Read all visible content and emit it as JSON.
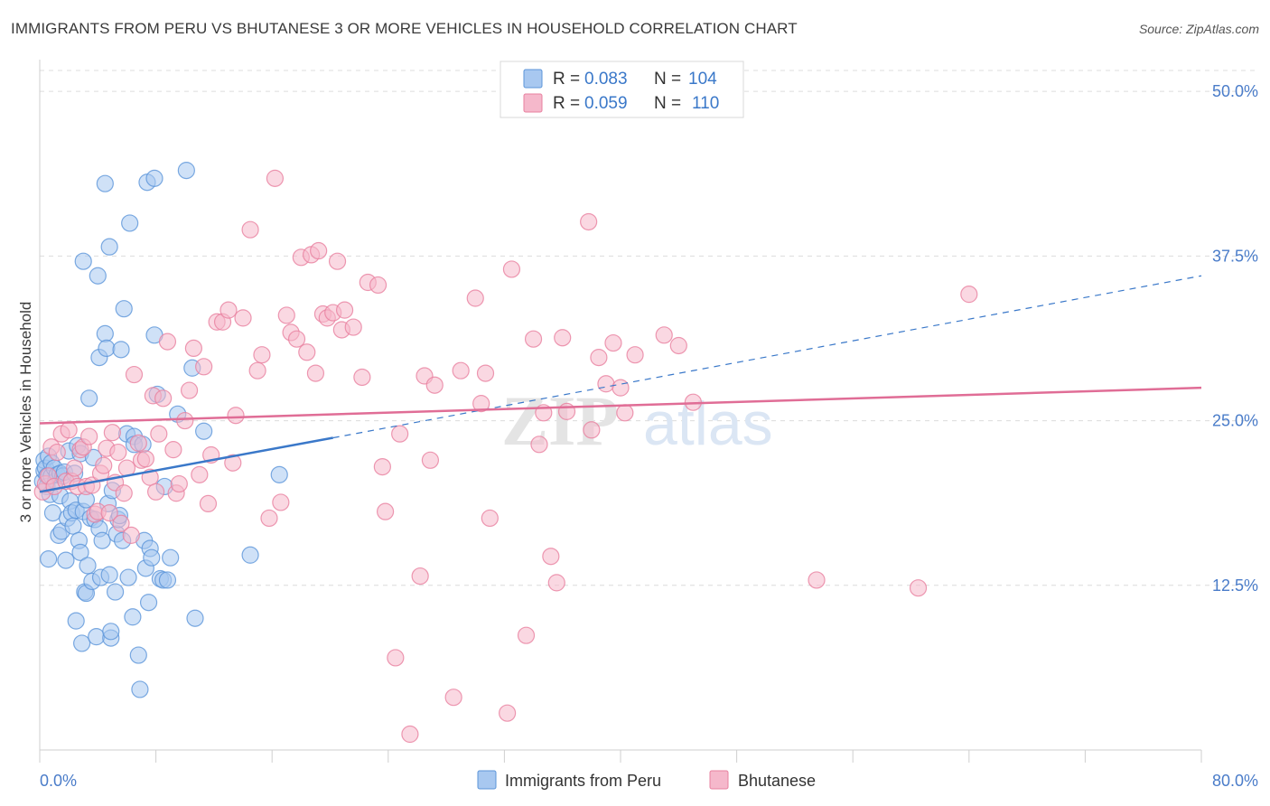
{
  "header": {
    "title": "IMMIGRANTS FROM PERU VS BHUTANESE 3 OR MORE VEHICLES IN HOUSEHOLD CORRELATION CHART",
    "source": "Source: ZipAtlas.com"
  },
  "watermark": {
    "zip": "ZIP",
    "atlas": "atlas"
  },
  "legend_top": {
    "rows": [
      {
        "r_label": "R =",
        "r_value": "0.083",
        "n_label": "N =",
        "n_value": "104"
      },
      {
        "r_label": "R =",
        "r_value": "0.059",
        "n_label": "N =",
        "n_value": "110"
      }
    ]
  },
  "colors": {
    "blue_fill": "#a8c8f0",
    "blue_stroke": "#5b95d9",
    "blue_line": "#3a78c9",
    "pink_fill": "#f5b8cb",
    "pink_stroke": "#e8809f",
    "pink_line": "#e06d96",
    "tick_label": "#4a7cc9",
    "grid": "#dcdcdc"
  },
  "chart_data": {
    "type": "scatter",
    "title": "IMMIGRANTS FROM PERU VS BHUTANESE 3 OR MORE VEHICLES IN HOUSEHOLD CORRELATION CHART",
    "xlabel": "",
    "ylabel": "3 or more Vehicles in Household",
    "xlim": [
      0,
      80
    ],
    "ylim": [
      0,
      52
    ],
    "x_tick_labels": [
      "0.0%",
      "80.0%"
    ],
    "y_ticks": [
      12.5,
      25.0,
      37.5,
      50.0
    ],
    "y_tick_labels": [
      "12.5%",
      "25.0%",
      "37.5%",
      "50.0%"
    ],
    "grid": true,
    "legend_position": "bottom",
    "series": [
      {
        "name": "Immigrants from Peru",
        "r": 0.083,
        "n": 104,
        "trend": {
          "x0": 0,
          "y0": 19.6,
          "x1": 20.2,
          "y1": 23.7,
          "dash_to_x": 80,
          "dash_to_y": 36.0
        },
        "points": [
          [
            0.2,
            20.4
          ],
          [
            0.3,
            21.2
          ],
          [
            0.3,
            22.0
          ],
          [
            0.4,
            21.4
          ],
          [
            0.5,
            20.8
          ],
          [
            0.5,
            20.0
          ],
          [
            0.6,
            14.5
          ],
          [
            0.6,
            22.3
          ],
          [
            0.7,
            19.4
          ],
          [
            0.8,
            20.8
          ],
          [
            0.8,
            21.8
          ],
          [
            0.9,
            18.0
          ],
          [
            1.0,
            21.4
          ],
          [
            1.1,
            20.4
          ],
          [
            1.2,
            20.9
          ],
          [
            1.3,
            16.3
          ],
          [
            1.4,
            19.3
          ],
          [
            1.4,
            21.0
          ],
          [
            1.5,
            16.6
          ],
          [
            1.6,
            20.8
          ],
          [
            1.7,
            21.1
          ],
          [
            1.8,
            14.4
          ],
          [
            1.9,
            17.6
          ],
          [
            2.0,
            22.7
          ],
          [
            2.1,
            18.9
          ],
          [
            2.2,
            18.0
          ],
          [
            2.3,
            17.0
          ],
          [
            2.4,
            21.0
          ],
          [
            2.5,
            9.8
          ],
          [
            2.5,
            18.2
          ],
          [
            2.6,
            23.1
          ],
          [
            2.7,
            15.9
          ],
          [
            2.8,
            15.0
          ],
          [
            2.8,
            22.5
          ],
          [
            2.9,
            8.1
          ],
          [
            3.0,
            37.1
          ],
          [
            3.0,
            18.1
          ],
          [
            3.1,
            12.0
          ],
          [
            3.2,
            19.0
          ],
          [
            3.2,
            11.9
          ],
          [
            3.3,
            14.0
          ],
          [
            3.4,
            26.7
          ],
          [
            3.5,
            17.6
          ],
          [
            3.6,
            12.8
          ],
          [
            3.7,
            22.2
          ],
          [
            3.8,
            17.5
          ],
          [
            3.9,
            8.6
          ],
          [
            4.0,
            36.0
          ],
          [
            4.1,
            29.8
          ],
          [
            4.1,
            16.8
          ],
          [
            4.2,
            13.1
          ],
          [
            4.3,
            15.9
          ],
          [
            4.5,
            31.6
          ],
          [
            4.5,
            43.0
          ],
          [
            4.6,
            30.5
          ],
          [
            4.7,
            18.7
          ],
          [
            4.8,
            38.2
          ],
          [
            4.8,
            13.3
          ],
          [
            4.9,
            8.5
          ],
          [
            4.9,
            9.0
          ],
          [
            5.0,
            19.7
          ],
          [
            5.2,
            12.0
          ],
          [
            5.3,
            16.4
          ],
          [
            5.4,
            17.5
          ],
          [
            5.5,
            17.8
          ],
          [
            5.6,
            30.4
          ],
          [
            5.7,
            15.9
          ],
          [
            5.8,
            33.5
          ],
          [
            6.0,
            24.0
          ],
          [
            6.1,
            13.1
          ],
          [
            6.2,
            40.0
          ],
          [
            6.4,
            10.1
          ],
          [
            6.5,
            23.8
          ],
          [
            6.5,
            23.2
          ],
          [
            6.8,
            7.2
          ],
          [
            6.9,
            4.6
          ],
          [
            7.1,
            23.2
          ],
          [
            7.2,
            15.9
          ],
          [
            7.3,
            13.8
          ],
          [
            7.4,
            43.1
          ],
          [
            7.5,
            11.2
          ],
          [
            7.6,
            15.3
          ],
          [
            7.7,
            14.6
          ],
          [
            7.9,
            43.4
          ],
          [
            7.9,
            31.5
          ],
          [
            8.1,
            27.0
          ],
          [
            8.3,
            13.0
          ],
          [
            8.5,
            12.9
          ],
          [
            8.6,
            20.0
          ],
          [
            8.8,
            12.9
          ],
          [
            9.0,
            14.6
          ],
          [
            9.5,
            25.5
          ],
          [
            10.1,
            44.0
          ],
          [
            10.5,
            29.0
          ],
          [
            10.7,
            10.0
          ],
          [
            11.3,
            24.2
          ],
          [
            14.5,
            14.8
          ],
          [
            16.5,
            20.9
          ]
        ]
      },
      {
        "name": "Bhutanese",
        "r": 0.059,
        "n": 110,
        "trend": {
          "x0": 0,
          "y0": 24.8,
          "x1": 80,
          "y1": 27.5
        },
        "points": [
          [
            0.2,
            19.6
          ],
          [
            0.4,
            20.2
          ],
          [
            0.6,
            20.8
          ],
          [
            0.8,
            23.0
          ],
          [
            1.0,
            20.0
          ],
          [
            1.2,
            22.6
          ],
          [
            1.5,
            24.0
          ],
          [
            1.8,
            20.4
          ],
          [
            2.0,
            24.3
          ],
          [
            2.2,
            20.4
          ],
          [
            2.4,
            21.4
          ],
          [
            2.6,
            20.0
          ],
          [
            2.8,
            22.8
          ],
          [
            3.0,
            23.0
          ],
          [
            3.2,
            20.0
          ],
          [
            3.4,
            23.8
          ],
          [
            3.6,
            20.1
          ],
          [
            3.8,
            17.9
          ],
          [
            4.0,
            18.1
          ],
          [
            4.2,
            21.0
          ],
          [
            4.4,
            21.6
          ],
          [
            4.6,
            22.9
          ],
          [
            4.8,
            18.0
          ],
          [
            5.0,
            24.1
          ],
          [
            5.2,
            20.3
          ],
          [
            5.4,
            22.6
          ],
          [
            5.6,
            17.2
          ],
          [
            5.8,
            19.5
          ],
          [
            6.0,
            21.4
          ],
          [
            6.3,
            16.3
          ],
          [
            6.5,
            28.5
          ],
          [
            6.8,
            23.3
          ],
          [
            7.0,
            22.0
          ],
          [
            7.3,
            22.1
          ],
          [
            7.6,
            20.7
          ],
          [
            7.8,
            26.9
          ],
          [
            8.0,
            19.6
          ],
          [
            8.2,
            24.0
          ],
          [
            8.5,
            26.7
          ],
          [
            8.8,
            31.0
          ],
          [
            9.2,
            22.8
          ],
          [
            9.4,
            19.5
          ],
          [
            9.6,
            20.2
          ],
          [
            10.0,
            25.0
          ],
          [
            10.3,
            27.3
          ],
          [
            10.6,
            30.5
          ],
          [
            11.0,
            20.9
          ],
          [
            11.3,
            29.1
          ],
          [
            11.6,
            18.7
          ],
          [
            11.8,
            22.4
          ],
          [
            12.2,
            32.5
          ],
          [
            12.6,
            32.5
          ],
          [
            13.0,
            33.4
          ],
          [
            13.3,
            21.8
          ],
          [
            13.5,
            25.4
          ],
          [
            14.0,
            32.8
          ],
          [
            14.5,
            39.5
          ],
          [
            15.0,
            28.8
          ],
          [
            15.3,
            30.0
          ],
          [
            15.8,
            17.6
          ],
          [
            16.2,
            43.4
          ],
          [
            16.6,
            18.8
          ],
          [
            17.0,
            33.0
          ],
          [
            17.3,
            31.7
          ],
          [
            17.7,
            31.2
          ],
          [
            18.0,
            37.4
          ],
          [
            18.4,
            30.2
          ],
          [
            18.7,
            37.6
          ],
          [
            19.0,
            28.6
          ],
          [
            19.2,
            37.9
          ],
          [
            19.5,
            33.1
          ],
          [
            19.8,
            32.8
          ],
          [
            20.2,
            33.2
          ],
          [
            20.5,
            37.1
          ],
          [
            20.8,
            31.9
          ],
          [
            21.0,
            33.4
          ],
          [
            21.6,
            32.1
          ],
          [
            22.2,
            28.3
          ],
          [
            22.6,
            35.5
          ],
          [
            23.3,
            35.3
          ],
          [
            23.6,
            21.5
          ],
          [
            23.8,
            18.1
          ],
          [
            24.5,
            7.0
          ],
          [
            24.8,
            24.0
          ],
          [
            25.5,
            1.2
          ],
          [
            26.2,
            13.2
          ],
          [
            26.5,
            28.4
          ],
          [
            26.9,
            22.0
          ],
          [
            27.2,
            27.7
          ],
          [
            28.5,
            4.0
          ],
          [
            29.0,
            28.8
          ],
          [
            30.0,
            34.3
          ],
          [
            30.4,
            26.3
          ],
          [
            30.7,
            28.6
          ],
          [
            31.0,
            17.6
          ],
          [
            32.2,
            2.8
          ],
          [
            32.5,
            36.5
          ],
          [
            33.5,
            8.7
          ],
          [
            34.0,
            31.2
          ],
          [
            34.4,
            23.2
          ],
          [
            34.7,
            25.6
          ],
          [
            35.2,
            14.7
          ],
          [
            35.6,
            12.7
          ],
          [
            36.0,
            31.3
          ],
          [
            36.3,
            25.7
          ],
          [
            37.8,
            40.1
          ],
          [
            38.0,
            24.3
          ],
          [
            38.5,
            29.8
          ],
          [
            39.0,
            27.8
          ],
          [
            39.5,
            30.9
          ],
          [
            40.0,
            27.5
          ],
          [
            40.3,
            25.6
          ],
          [
            41.0,
            30.0
          ],
          [
            43.0,
            31.5
          ],
          [
            44.0,
            30.7
          ],
          [
            45.0,
            26.4
          ],
          [
            53.5,
            12.9
          ],
          [
            60.5,
            12.3
          ],
          [
            64.0,
            34.6
          ]
        ]
      }
    ]
  },
  "legend_bottom": {
    "items": [
      {
        "label": "Immigrants from Peru"
      },
      {
        "label": "Bhutanese"
      }
    ]
  }
}
